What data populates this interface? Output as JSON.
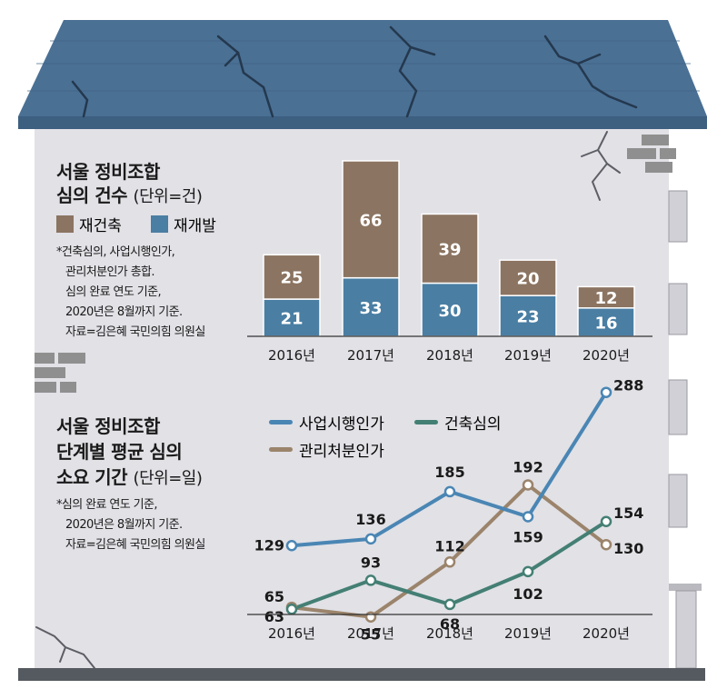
{
  "colors": {
    "roof": "#4a7094",
    "wall": "#e1e1e6",
    "brick": "#8f8f8f",
    "reconstruction": "#8b7461",
    "redevelopment": "#4a7ea3",
    "line_project": "#4a86b4",
    "line_building": "#447f74",
    "line_disposal": "#9b846b",
    "text": "#1a1a1a"
  },
  "top_section": {
    "title_line1": "서울 정비조합",
    "title_line2": "심의 건수",
    "unit": "(단위=건)",
    "legend_reconstruction": "재건축",
    "legend_redevelopment": "재개발",
    "notes": [
      "*건축심의, 사업시행인가,",
      "관리처분인가 총합.",
      "심의 완료 연도 기준,",
      "2020년은 8월까지 기준.",
      "자료=김은혜 국민의힘 의원실"
    ]
  },
  "bottom_section": {
    "title_line1": "서울 정비조합",
    "title_line2": "단계별 평균 심의",
    "title_line3": "소요 기간",
    "unit": "(단위=일)",
    "legend_project": "사업시행인가",
    "legend_building": "건축심의",
    "legend_disposal": "관리처분인가",
    "notes": [
      "*심의 완료 연도 기준,",
      "2020년은 8월까지 기준.",
      "자료=김은혜 국민의힘 의원실"
    ]
  },
  "chart_data": [
    {
      "type": "bar",
      "stacked": true,
      "title": "서울 정비조합 심의 건수",
      "unit": "건",
      "categories": [
        "2016년",
        "2017년",
        "2018년",
        "2019년",
        "2020년"
      ],
      "series": [
        {
          "name": "재개발",
          "values": [
            21,
            33,
            30,
            23,
            16
          ],
          "color": "#4a7ea3"
        },
        {
          "name": "재건축",
          "values": [
            25,
            66,
            39,
            20,
            12
          ],
          "color": "#8b7461"
        }
      ],
      "ylim": [
        0,
        100
      ]
    },
    {
      "type": "line",
      "title": "서울 정비조합 단계별 평균 심의 소요 기간",
      "unit": "일",
      "categories": [
        "2016년",
        "2017년",
        "2018년",
        "2019년",
        "2020년"
      ],
      "series": [
        {
          "name": "사업시행인가",
          "values": [
            129,
            136,
            185,
            159,
            288
          ],
          "color": "#4a86b4"
        },
        {
          "name": "건축심의",
          "values": [
            63,
            93,
            68,
            102,
            154
          ],
          "color": "#447f74"
        },
        {
          "name": "관리처분인가",
          "values": [
            65,
            55,
            112,
            192,
            130
          ],
          "color": "#9b846b"
        }
      ],
      "ylim": [
        0,
        300
      ]
    }
  ]
}
